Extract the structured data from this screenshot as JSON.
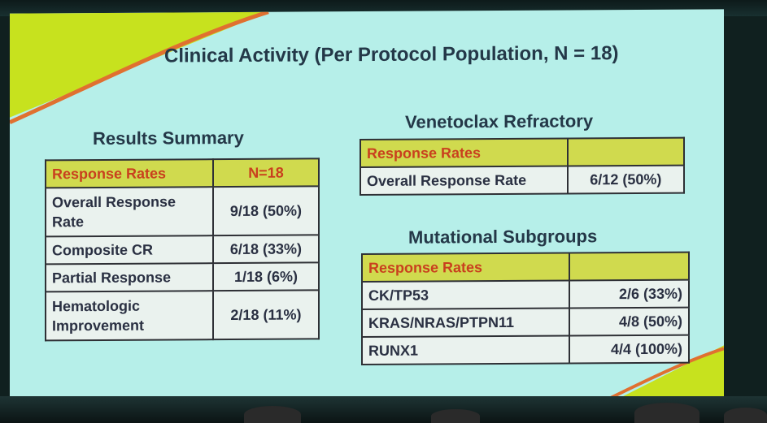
{
  "slide": {
    "title": "Clinical Activity (Per Protocol Population, N = 18)",
    "colors": {
      "background": "#b6efe9",
      "accent_green": "#c7e21e",
      "accent_orange": "#e07030",
      "header_fill": "#d0da4e",
      "header_text": "#c9401e"
    }
  },
  "results_summary": {
    "title": "Results Summary",
    "header": [
      "Response Rates",
      "N=18"
    ],
    "rows": [
      [
        "Overall Response Rate",
        "9/18 (50%)"
      ],
      [
        "Composite CR",
        "6/18 (33%)"
      ],
      [
        "Partial Response",
        "1/18 (6%)"
      ],
      [
        "Hematologic Improvement",
        "2/18 (11%)"
      ]
    ]
  },
  "venetoclax_refractory": {
    "title": "Venetoclax Refractory",
    "header": [
      "Response Rates",
      ""
    ],
    "rows": [
      [
        "Overall Response Rate",
        "6/12 (50%)"
      ]
    ]
  },
  "mutational_subgroups": {
    "title": "Mutational Subgroups",
    "header": [
      "Response Rates",
      ""
    ],
    "rows": [
      [
        "CK/TP53",
        "2/6 (33%)"
      ],
      [
        "KRAS/NRAS/PTPN11",
        "4/8 (50%)"
      ],
      [
        "RUNX1",
        "4/4 (100%)"
      ]
    ]
  }
}
